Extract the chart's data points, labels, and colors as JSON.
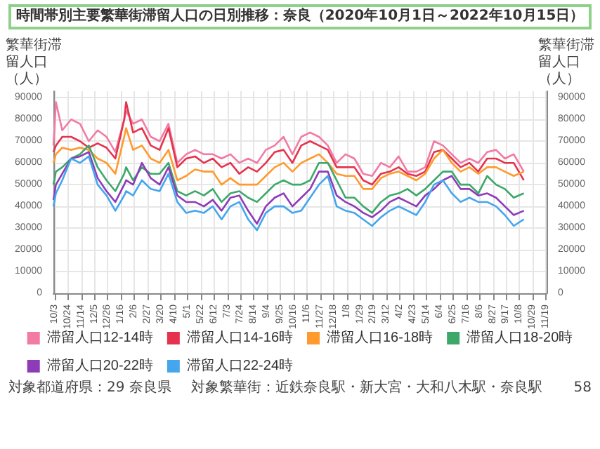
{
  "chart_data": {
    "type": "line",
    "title": "時間帯別主要繁華街滞留人口の日別推移：奈良（2020年10月1日～2022年10月15日）",
    "ylabel": "繁華街滞留人口（人）",
    "y2label": "繁華街滞留人口（人）",
    "x": [
      "2020-10-01",
      "2020-10-05",
      "2020-10-15",
      "2020-10-29",
      "2020-11-12",
      "2020-11-26",
      "2020-12-10",
      "2020-12-24",
      "2021-01-07",
      "2021-01-21",
      "2021-01-24",
      "2021-02-04",
      "2021-02-18",
      "2021-03-04",
      "2021-03-18",
      "2021-04-01",
      "2021-04-15",
      "2021-04-29",
      "2021-05-13",
      "2021-05-27",
      "2021-06-10",
      "2021-06-24",
      "2021-07-08",
      "2021-07-22",
      "2021-08-05",
      "2021-08-19",
      "2021-09-02",
      "2021-09-16",
      "2021-09-30",
      "2021-10-14",
      "2021-10-28",
      "2021-11-11",
      "2021-11-25",
      "2021-12-09",
      "2021-12-23",
      "2022-01-06",
      "2022-01-20",
      "2022-02-03",
      "2022-02-17",
      "2022-03-03",
      "2022-03-17",
      "2022-03-31",
      "2022-04-14",
      "2022-04-28",
      "2022-05-12",
      "2022-05-26",
      "2022-06-09",
      "2022-06-23",
      "2022-07-07",
      "2022-07-21",
      "2022-08-04",
      "2022-08-18",
      "2022-09-01",
      "2022-09-15",
      "2022-09-29",
      "2022-10-15"
    ],
    "series": [
      {
        "name": "滞留人口12-14時",
        "color": "#f27aa3",
        "values": [
          68000,
          88000,
          75000,
          80000,
          78000,
          70000,
          75000,
          72000,
          65000,
          80000,
          84000,
          78000,
          80000,
          72000,
          70000,
          78000,
          60000,
          64000,
          66000,
          64000,
          64000,
          62000,
          64000,
          60000,
          62000,
          60000,
          66000,
          68000,
          72000,
          64000,
          72000,
          74000,
          72000,
          68000,
          60000,
          64000,
          62000,
          55000,
          54000,
          60000,
          58000,
          63000,
          56000,
          56000,
          58000,
          70000,
          68000,
          64000,
          60000,
          62000,
          60000,
          65000,
          66000,
          62000,
          64000,
          56000
        ]
      },
      {
        "name": "滞留人口14-16時",
        "color": "#e6334d",
        "values": [
          65000,
          68000,
          72000,
          72000,
          70000,
          67000,
          69000,
          67000,
          62000,
          80000,
          88000,
          74000,
          76000,
          68000,
          66000,
          76000,
          58000,
          62000,
          63000,
          60000,
          62000,
          58000,
          60000,
          55000,
          58000,
          56000,
          60000,
          65000,
          66000,
          60000,
          68000,
          70000,
          68000,
          66000,
          58000,
          58000,
          58000,
          52000,
          50000,
          55000,
          56000,
          58000,
          55000,
          54000,
          56000,
          65000,
          66000,
          62000,
          58000,
          60000,
          56000,
          62000,
          62000,
          60000,
          60000,
          52000
        ]
      },
      {
        "name": "滞留人口16-18時",
        "color": "#ff9a2e",
        "values": [
          60000,
          64000,
          67000,
          66000,
          67000,
          66000,
          62000,
          60000,
          55000,
          72000,
          76000,
          66000,
          68000,
          62000,
          60000,
          66000,
          52000,
          54000,
          57000,
          56000,
          56000,
          50000,
          53000,
          50000,
          50000,
          50000,
          54000,
          58000,
          60000,
          56000,
          60000,
          62000,
          64000,
          60000,
          55000,
          54000,
          54000,
          48000,
          48000,
          53000,
          55000,
          56000,
          54000,
          52000,
          55000,
          62000,
          66000,
          60000,
          56000,
          58000,
          55000,
          58000,
          58000,
          56000,
          54000,
          56000
        ]
      },
      {
        "name": "滞留人口18-20時",
        "color": "#3ca86a",
        "values": [
          50000,
          56000,
          58000,
          62000,
          64000,
          68000,
          58000,
          52000,
          47000,
          55000,
          58000,
          52000,
          58000,
          55000,
          55000,
          60000,
          47000,
          45000,
          47000,
          45000,
          48000,
          42000,
          46000,
          47000,
          44000,
          42000,
          46000,
          50000,
          52000,
          50000,
          50000,
          52000,
          60000,
          60000,
          52000,
          44000,
          44000,
          40000,
          37000,
          42000,
          45000,
          46000,
          48000,
          45000,
          48000,
          52000,
          56000,
          56000,
          50000,
          50000,
          46000,
          54000,
          50000,
          48000,
          44000,
          46000
        ]
      },
      {
        "name": "滞留人口20-22時",
        "color": "#8e3bb8",
        "values": [
          43000,
          50000,
          55000,
          62000,
          63000,
          65000,
          53000,
          47000,
          42000,
          50000,
          52000,
          50000,
          60000,
          53000,
          50000,
          58000,
          45000,
          42000,
          42000,
          40000,
          43000,
          38000,
          44000,
          45000,
          38000,
          32000,
          40000,
          44000,
          46000,
          40000,
          44000,
          48000,
          56000,
          56000,
          45000,
          42000,
          40000,
          37000,
          35000,
          38000,
          42000,
          44000,
          42000,
          40000,
          45000,
          48000,
          52000,
          54000,
          48000,
          48000,
          45000,
          46000,
          44000,
          40000,
          36000,
          38000
        ]
      },
      {
        "name": "滞留人口22-24時",
        "color": "#45a6ee",
        "values": [
          40000,
          46000,
          52000,
          62000,
          60000,
          63000,
          50000,
          45000,
          38000,
          45000,
          47000,
          45000,
          52000,
          48000,
          47000,
          55000,
          42000,
          37000,
          38000,
          37000,
          40000,
          34000,
          40000,
          42000,
          34000,
          29000,
          37000,
          40000,
          40000,
          37000,
          38000,
          44000,
          50000,
          54000,
          40000,
          38000,
          37000,
          34000,
          31000,
          35000,
          38000,
          40000,
          38000,
          36000,
          42000,
          50000,
          52000,
          46000,
          42000,
          44000,
          42000,
          42000,
          40000,
          36000,
          31000,
          34000
        ]
      }
    ],
    "xlim": [
      "2020-10-01",
      "2022-11-20"
    ],
    "xticks": [
      {
        "value": "2020-10-03",
        "label": "10/3"
      },
      {
        "value": "2020-10-24",
        "label": "10/24"
      },
      {
        "value": "2020-11-14",
        "label": "11/14"
      },
      {
        "value": "2020-12-05",
        "label": "12/5"
      },
      {
        "value": "2020-12-26",
        "label": "12/26"
      },
      {
        "value": "2021-01-16",
        "label": "1/16"
      },
      {
        "value": "2021-02-06",
        "label": "2/6"
      },
      {
        "value": "2021-02-27",
        "label": "2/27"
      },
      {
        "value": "2021-03-20",
        "label": "3/20"
      },
      {
        "value": "2021-04-10",
        "label": "4/10"
      },
      {
        "value": "2021-05-01",
        "label": "5/1"
      },
      {
        "value": "2021-05-22",
        "label": "5/22"
      },
      {
        "value": "2021-06-12",
        "label": "6/12"
      },
      {
        "value": "2021-07-03",
        "label": "7/3"
      },
      {
        "value": "2021-07-24",
        "label": "7/24"
      },
      {
        "value": "2021-08-14",
        "label": "8/14"
      },
      {
        "value": "2021-09-04",
        "label": "9/4"
      },
      {
        "value": "2021-09-25",
        "label": "9/25"
      },
      {
        "value": "2021-10-16",
        "label": "10/16"
      },
      {
        "value": "2021-11-06",
        "label": "11/6"
      },
      {
        "value": "2021-11-27",
        "label": "11/27"
      },
      {
        "value": "2021-12-18",
        "label": "12/18"
      },
      {
        "value": "2022-01-08",
        "label": "1/8"
      },
      {
        "value": "2022-01-29",
        "label": "1/29"
      },
      {
        "value": "2022-02-19",
        "label": "2/19"
      },
      {
        "value": "2022-03-12",
        "label": "3/12"
      },
      {
        "value": "2022-04-02",
        "label": "4/2"
      },
      {
        "value": "2022-04-23",
        "label": "4/23"
      },
      {
        "value": "2022-05-14",
        "label": "5/14"
      },
      {
        "value": "2022-06-04",
        "label": "6/4"
      },
      {
        "value": "2022-06-25",
        "label": "6/25"
      },
      {
        "value": "2022-07-16",
        "label": "7/16"
      },
      {
        "value": "2022-08-06",
        "label": "8/6"
      },
      {
        "value": "2022-08-27",
        "label": "8/27"
      },
      {
        "value": "2022-09-17",
        "label": "9/17"
      },
      {
        "value": "2022-10-08",
        "label": "10/8"
      },
      {
        "value": "2022-10-29",
        "label": "10/29"
      },
      {
        "value": "2022-11-19",
        "label": "11/19"
      }
    ],
    "ylim": [
      0,
      93000
    ],
    "yticks": [
      0,
      10000,
      20000,
      30000,
      40000,
      50000,
      60000,
      70000,
      80000,
      90000
    ],
    "y2lim": [
      0,
      93000
    ],
    "y2ticks": [
      0,
      10000,
      20000,
      30000,
      40000,
      50000,
      60000,
      70000,
      80000,
      90000
    ],
    "grid": true,
    "legend": "bottom",
    "marker": "none",
    "line_style": "solid",
    "annotations": [
      "対象都道府県：29 奈良県",
      "対象繁華街：近鉄奈良駅・新大宮・大和八木駅・奈良駅",
      "58"
    ]
  }
}
